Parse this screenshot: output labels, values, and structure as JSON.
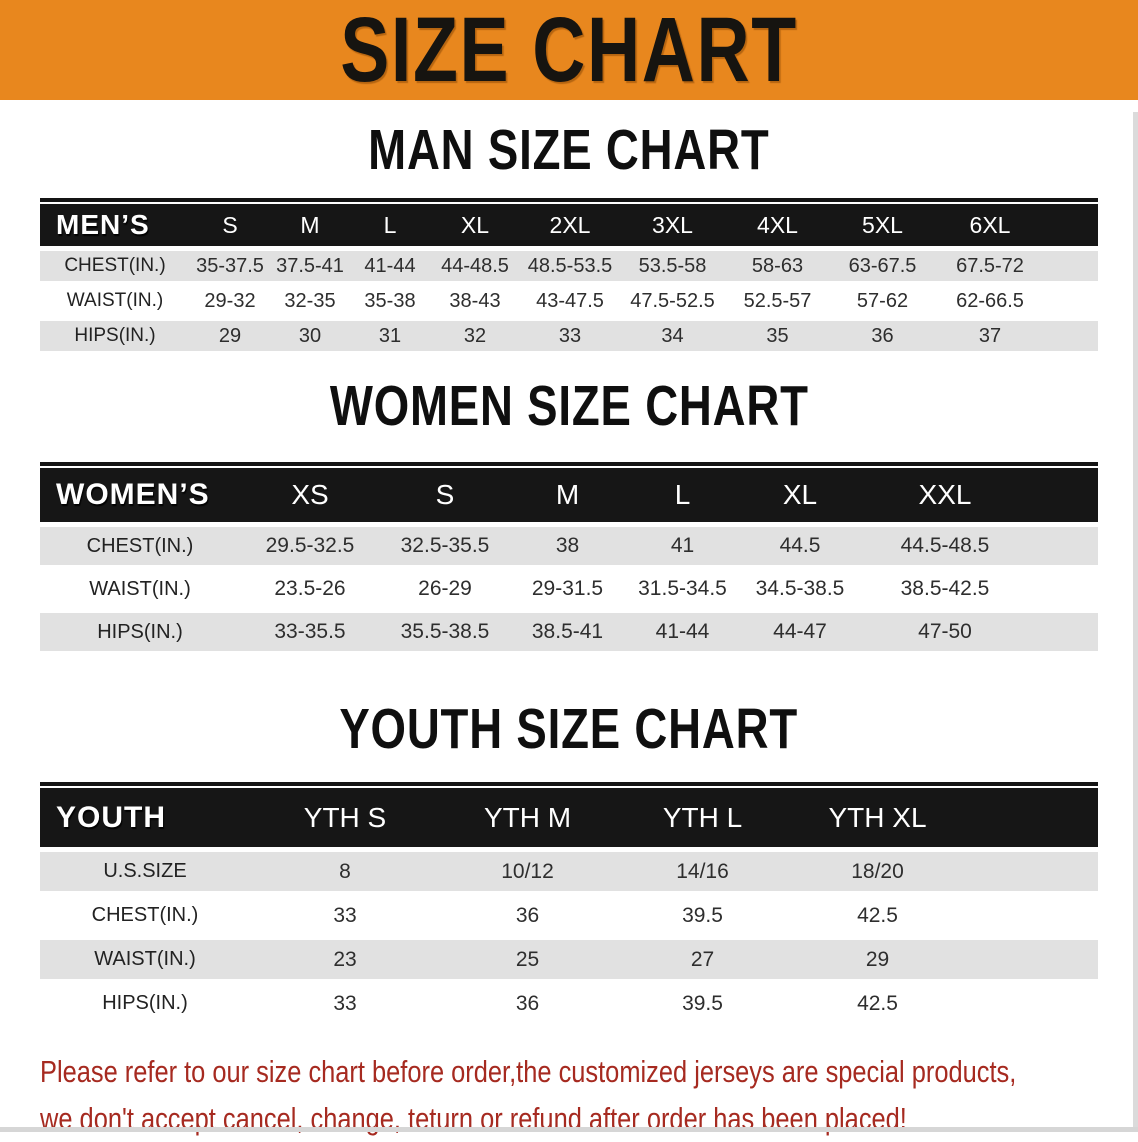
{
  "banner": {
    "title": "SIZE CHART",
    "bg_color": "#E8871E"
  },
  "sections": [
    {
      "heading": "MAN SIZE CHART",
      "table": {
        "header_label": "MEN’S",
        "columns": [
          "S",
          "M",
          "L",
          "XL",
          "2XL",
          "3XL",
          "4XL",
          "5XL",
          "6XL"
        ],
        "rows": [
          {
            "label": "CHEST(IN.)",
            "values": [
              "35-37.5",
              "37.5-41",
              "41-44",
              "44-48.5",
              "48.5-53.5",
              "53.5-58",
              "58-63",
              "63-67.5",
              "67.5-72"
            ]
          },
          {
            "label": "WAIST(IN.)",
            "values": [
              "29-32",
              "32-35",
              "35-38",
              "38-43",
              "43-47.5",
              "47.5-52.5",
              "52.5-57",
              "57-62",
              "62-66.5"
            ]
          },
          {
            "label": "HIPS(IN.)",
            "values": [
              "29",
              "30",
              "31",
              "32",
              "33",
              "34",
              "35",
              "36",
              "37"
            ]
          }
        ]
      }
    },
    {
      "heading": "WOMEN SIZE CHART",
      "table": {
        "header_label": "WOMEN’S",
        "columns": [
          "XS",
          "S",
          "M",
          "L",
          "XL",
          "XXL"
        ],
        "rows": [
          {
            "label": "CHEST(IN.)",
            "values": [
              "29.5-32.5",
              "32.5-35.5",
              "38",
              "41",
              "44.5",
              "44.5-48.5"
            ]
          },
          {
            "label": "WAIST(IN.)",
            "values": [
              "23.5-26",
              "26-29",
              "29-31.5",
              "31.5-34.5",
              "34.5-38.5",
              "38.5-42.5"
            ]
          },
          {
            "label": "HIPS(IN.)",
            "values": [
              "33-35.5",
              "35.5-38.5",
              "38.5-41",
              "41-44",
              "44-47",
              "47-50"
            ]
          }
        ]
      }
    },
    {
      "heading": "YOUTH SIZE CHART",
      "table": {
        "header_label": "YOUTH",
        "columns": [
          "YTH S",
          "YTH M",
          "YTH L",
          "YTH XL"
        ],
        "rows": [
          {
            "label": "U.S.SIZE",
            "values": [
              "8",
              "10/12",
              "14/16",
              "18/20"
            ]
          },
          {
            "label": "CHEST(IN.)",
            "values": [
              "33",
              "36",
              "39.5",
              "42.5"
            ]
          },
          {
            "label": "WAIST(IN.)",
            "values": [
              "23",
              "25",
              "27",
              "29"
            ]
          },
          {
            "label": "HIPS(IN.)",
            "values": [
              "33",
              "36",
              "39.5",
              "42.5"
            ]
          }
        ]
      }
    }
  ],
  "footer": {
    "line1": "Please refer to our size chart before order,the customized jerseys are special products,",
    "line2": "we don't accept cancel, change, teturn or refund after order has been placed!",
    "text_color": "#A62A20"
  }
}
